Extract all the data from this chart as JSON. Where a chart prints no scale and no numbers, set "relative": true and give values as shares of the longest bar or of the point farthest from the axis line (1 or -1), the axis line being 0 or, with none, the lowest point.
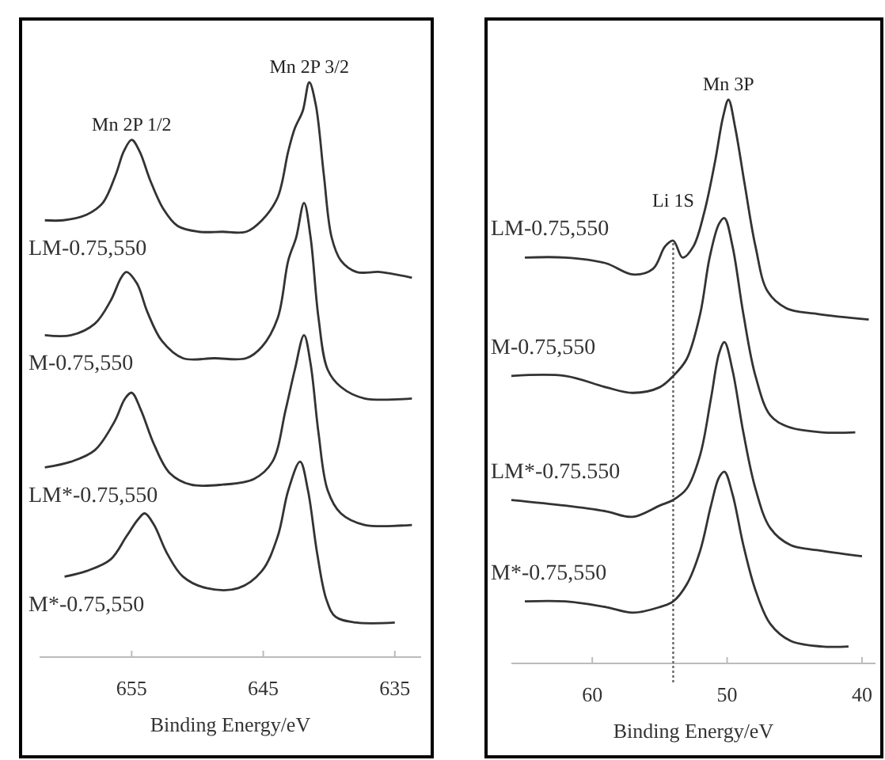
{
  "chart_data": [
    {
      "type": "line",
      "relative": true,
      "xlabel": "Binding Energy/eV",
      "xlim": [
        662,
        633
      ],
      "xticks": [
        655,
        645,
        635
      ],
      "annotations": [
        {
          "text": "Mn 2P 1/2",
          "x": 655,
          "y": 0.9
        },
        {
          "text": "Mn 2P 3/2",
          "x": 641.5,
          "y": 1.0
        }
      ],
      "series": [
        {
          "name": "LM-0.75,550",
          "color": "#333333",
          "x": [
            661.6,
            660.2,
            658.4,
            657.2,
            656.2,
            655.6,
            655.0,
            654.4,
            653.6,
            652.6,
            651.5,
            649.9,
            648.1,
            646.3,
            645.1,
            643.9,
            643.1,
            642.6,
            642.0,
            641.5,
            641.0,
            640.4,
            639.8,
            639.1,
            637.9,
            636.1,
            633.7
          ],
          "values": [
            0.76,
            0.76,
            0.77,
            0.79,
            0.84,
            0.88,
            0.9,
            0.88,
            0.83,
            0.78,
            0.75,
            0.74,
            0.74,
            0.74,
            0.76,
            0.8,
            0.88,
            0.92,
            0.95,
            1.0,
            0.96,
            0.84,
            0.73,
            0.69,
            0.67,
            0.67,
            0.66
          ]
        },
        {
          "name": "M-0.75,550",
          "color": "#333333",
          "x": [
            661.6,
            659.6,
            657.8,
            656.6,
            655.8,
            655.4,
            654.6,
            653.8,
            652.7,
            651.1,
            648.7,
            646.3,
            645.1,
            643.9,
            643.1,
            642.5,
            641.9,
            641.4,
            640.8,
            640.1,
            639.1,
            637.3,
            633.7
          ],
          "values": [
            0.56,
            0.56,
            0.58,
            0.62,
            0.66,
            0.67,
            0.65,
            0.6,
            0.55,
            0.52,
            0.52,
            0.52,
            0.54,
            0.59,
            0.69,
            0.73,
            0.79,
            0.73,
            0.59,
            0.5,
            0.47,
            0.45,
            0.45
          ]
        },
        {
          "name": "LM*-0.75,550",
          "color": "#333333",
          "x": [
            661.6,
            659.6,
            657.8,
            656.3,
            655.5,
            655.0,
            654.3,
            653.3,
            652.1,
            650.5,
            648.1,
            645.7,
            644.3,
            643.3,
            642.6,
            641.9,
            641.4,
            640.8,
            640.1,
            639.1,
            637.3,
            633.7
          ],
          "values": [
            0.33,
            0.34,
            0.36,
            0.41,
            0.45,
            0.46,
            0.43,
            0.37,
            0.32,
            0.3,
            0.3,
            0.31,
            0.34,
            0.43,
            0.5,
            0.56,
            0.51,
            0.39,
            0.29,
            0.25,
            0.23,
            0.23
          ]
        },
        {
          "name": "M*-0.75,550",
          "color": "#333333",
          "x": [
            660.1,
            658.4,
            656.6,
            655.4,
            654.5,
            654.0,
            653.3,
            652.3,
            651.1,
            649.3,
            646.9,
            645.1,
            643.9,
            643.1,
            642.2,
            641.6,
            640.9,
            640.2,
            639.5,
            637.9,
            635.0
          ],
          "values": [
            0.14,
            0.15,
            0.17,
            0.21,
            0.24,
            0.25,
            0.23,
            0.18,
            0.14,
            0.12,
            0.12,
            0.15,
            0.21,
            0.29,
            0.34,
            0.29,
            0.18,
            0.1,
            0.07,
            0.06,
            0.06
          ]
        }
      ]
    },
    {
      "type": "line",
      "relative": true,
      "xlabel": "Binding Energy/eV",
      "xlim": [
        66,
        39
      ],
      "xticks": [
        60,
        50,
        40
      ],
      "annotations": [
        {
          "text": "Mn 3P",
          "x": 49.9,
          "y": 1.0
        }
      ],
      "ref_lines": [
        {
          "axis": "x",
          "value": 54,
          "label": "Li 1S",
          "line_style": "dotted",
          "color": "#666666"
        }
      ],
      "series": [
        {
          "name": "LM-0.75,550",
          "color": "#333333",
          "x": [
            65,
            62,
            59,
            57,
            55.5,
            54.6,
            54.0,
            53.3,
            52.5,
            51.7,
            50.9,
            50.3,
            49.9,
            49.4,
            48.7,
            47.9,
            47.0,
            45.6,
            43.3,
            39.5
          ],
          "values": [
            0.72,
            0.72,
            0.71,
            0.69,
            0.7,
            0.74,
            0.75,
            0.72,
            0.74,
            0.8,
            0.89,
            0.97,
            1.0,
            0.95,
            0.85,
            0.74,
            0.66,
            0.63,
            0.62,
            0.61
          ]
        },
        {
          "name": "M-0.75,550",
          "color": "#333333",
          "x": [
            66,
            62,
            59,
            57,
            55,
            54,
            53,
            52,
            51.3,
            50.6,
            50.2,
            49.6,
            48.8,
            47.9,
            46.8,
            45.5,
            43,
            40.5
          ],
          "values": [
            0.51,
            0.51,
            0.49,
            0.48,
            0.49,
            0.51,
            0.54,
            0.62,
            0.72,
            0.78,
            0.79,
            0.74,
            0.62,
            0.51,
            0.44,
            0.42,
            0.41,
            0.41
          ]
        },
        {
          "name": "LM*-0.75.550",
          "color": "#333333",
          "x": [
            66,
            62,
            59,
            57,
            55,
            54,
            53,
            52,
            51.2,
            50.6,
            50.2,
            49.6,
            48.8,
            47.9,
            46.8,
            45.3,
            43,
            40
          ],
          "values": [
            0.29,
            0.28,
            0.27,
            0.26,
            0.28,
            0.29,
            0.31,
            0.37,
            0.47,
            0.55,
            0.57,
            0.52,
            0.41,
            0.31,
            0.24,
            0.21,
            0.2,
            0.19
          ]
        },
        {
          "name": "M*-0.75,550",
          "color": "#333333",
          "x": [
            65,
            62,
            59,
            57,
            55,
            54,
            53,
            52,
            51.2,
            50.6,
            50.2,
            49.6,
            48.8,
            47.9,
            46.8,
            45.3,
            43,
            41
          ],
          "values": [
            0.11,
            0.11,
            0.1,
            0.09,
            0.1,
            0.11,
            0.14,
            0.2,
            0.28,
            0.33,
            0.34,
            0.3,
            0.21,
            0.13,
            0.07,
            0.04,
            0.03,
            0.03
          ]
        }
      ]
    }
  ]
}
